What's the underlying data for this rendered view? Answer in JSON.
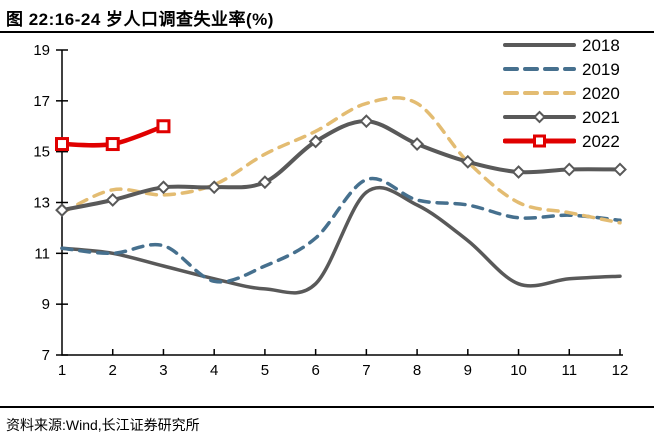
{
  "header": {
    "title": "图 22:16-24 岁人口调查失业率(%)"
  },
  "source": {
    "text": "资料来源:Wind,长江证券研究所"
  },
  "chart_data": {
    "type": "line",
    "title": "图 22:16-24 岁人口调查失业率(%)",
    "xlabel": "",
    "ylabel": "",
    "x": [
      1,
      2,
      3,
      4,
      5,
      6,
      7,
      8,
      9,
      10,
      11,
      12
    ],
    "y_ticks": [
      7,
      9,
      11,
      13,
      15,
      17,
      19
    ],
    "ylim": [
      7,
      19
    ],
    "grid": false,
    "smooth": true,
    "legend_position": "top-right",
    "axis_color": "#000000",
    "series": [
      {
        "name": "2018",
        "color": "#595959",
        "style": "solid",
        "marker": "none",
        "values": [
          11.2,
          11.0,
          10.5,
          10.0,
          9.6,
          9.8,
          13.4,
          12.9,
          11.5,
          9.8,
          10.0,
          10.1
        ]
      },
      {
        "name": "2019",
        "color": "#46708E",
        "style": "dashed",
        "marker": "none",
        "values": [
          11.2,
          11.0,
          11.3,
          9.9,
          10.5,
          11.6,
          13.9,
          13.1,
          12.9,
          12.4,
          12.5,
          12.3
        ]
      },
      {
        "name": "2020",
        "color": "#E3BC72",
        "style": "dashed",
        "marker": "none",
        "values": [
          12.6,
          13.5,
          13.3,
          13.7,
          14.9,
          15.8,
          16.9,
          16.9,
          14.6,
          13.0,
          12.6,
          12.2
        ]
      },
      {
        "name": "2021",
        "color": "#595959",
        "style": "solid",
        "marker": "diamond",
        "values": [
          12.7,
          13.1,
          13.6,
          13.6,
          13.8,
          15.4,
          16.2,
          15.3,
          14.6,
          14.2,
          14.3,
          14.3
        ]
      },
      {
        "name": "2022",
        "color": "#E00000",
        "style": "solid",
        "marker": "square",
        "values": [
          15.3,
          15.3,
          16.0
        ]
      }
    ]
  }
}
